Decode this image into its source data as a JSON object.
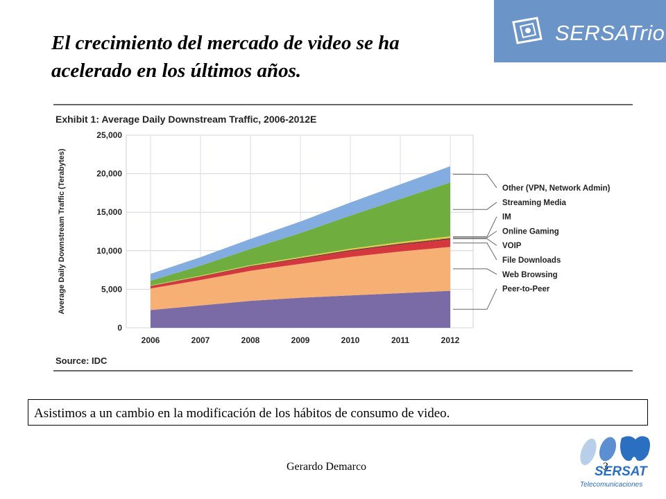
{
  "slide": {
    "title_line1": "El crecimiento del mercado de video se ha",
    "title_line2": "acelerado en los últimos años.",
    "caption": "Asistimos a un cambio en la modificación de los hábitos de consumo de video.",
    "footer_author": "Gerardo Demarco",
    "page_number": "3"
  },
  "brand": {
    "top_logo_text": "SERSATrio",
    "top_logo_bg": "#6b94c9",
    "bottom_logo_name": "SERSAT",
    "bottom_logo_sub": "Telecomunicaciones",
    "bottom_logo_color": "#2a6fc0"
  },
  "chart_data": {
    "type": "area",
    "stacked": true,
    "title": "Exhibit 1: Average Daily Downstream Traffic, 2006-2012E",
    "ylabel": "Average Daily Downstream Traffic (Terabytes)",
    "xlabel": "",
    "source": "Source: IDC",
    "x": [
      "2006",
      "2007",
      "2008",
      "2009",
      "2010",
      "2011",
      "2012"
    ],
    "ylim": [
      0,
      25000
    ],
    "yticks": [
      0,
      5000,
      10000,
      15000,
      20000,
      25000
    ],
    "ytick_labels": [
      "0",
      "5,000",
      "10,000",
      "15,000",
      "20,000",
      "25,000"
    ],
    "grid": true,
    "legend_position": "right",
    "series": [
      {
        "name": "Peer-to-Peer",
        "color": "#7a6aa6",
        "values": [
          2300,
          2900,
          3500,
          3900,
          4200,
          4500,
          4800
        ]
      },
      {
        "name": "Web Browsing",
        "color": "#f7b074",
        "values": [
          2800,
          3300,
          3900,
          4400,
          5000,
          5400,
          5700
        ]
      },
      {
        "name": "File Downloads",
        "color": "#d5373f",
        "values": [
          300,
          420,
          540,
          660,
          780,
          900,
          1000
        ]
      },
      {
        "name": "VOIP",
        "color": "#2f2f2f",
        "values": [
          30,
          45,
          60,
          75,
          90,
          100,
          110
        ]
      },
      {
        "name": "Online Gaming",
        "color": "#e8a63a",
        "values": [
          40,
          60,
          80,
          100,
          120,
          140,
          160
        ]
      },
      {
        "name": "IM",
        "color": "#f2e04e",
        "values": [
          30,
          40,
          50,
          60,
          70,
          80,
          90
        ]
      },
      {
        "name": "Streaming Media",
        "color": "#6fae3e",
        "values": [
          600,
          1300,
          2100,
          3100,
          4300,
          5600,
          7000
        ]
      },
      {
        "name": "Other (VPN, Network Admin)",
        "color": "#83ade0",
        "values": [
          900,
          1100,
          1300,
          1500,
          1700,
          1900,
          2100
        ]
      }
    ],
    "legend_order": [
      "Other (VPN, Network Admin)",
      "Streaming Media",
      "IM",
      "Online Gaming",
      "VOIP",
      "File Downloads",
      "Web Browsing",
      "Peer-to-Peer"
    ]
  }
}
